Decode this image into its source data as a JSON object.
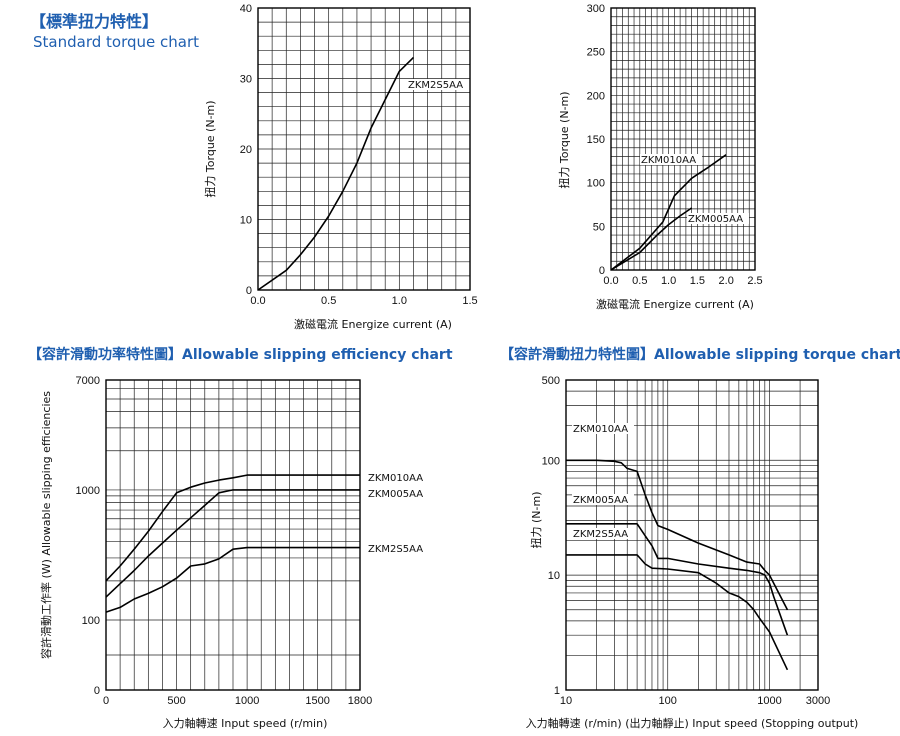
{
  "headings": {
    "standard_torque_zh": "【標準扭力特性】",
    "standard_torque_en": "Standard torque chart",
    "slip_efficiency": "【容許滑動功率特性圖】Allowable slipping efficiency chart",
    "slip_torque": "【容許滑動扭力特性圖】Allowable slipping torque chart"
  },
  "chart_data": [
    {
      "id": "torque-small",
      "type": "line",
      "title": "",
      "xlabel": "激磁電流 Energize current (A)",
      "ylabel": "扭力 Torque (N-m)",
      "xlim": [
        0,
        1.5
      ],
      "ylim": [
        0,
        40
      ],
      "xticks": [
        "0.0",
        "0.5",
        "1.0",
        "1.5"
      ],
      "yticks": [
        "0",
        "10",
        "20",
        "30",
        "40"
      ],
      "grid": true,
      "series": [
        {
          "name": "ZKM2S5AA",
          "x": [
            0,
            0.2,
            0.3,
            0.4,
            0.5,
            0.6,
            0.7,
            0.8,
            0.9,
            1.0,
            1.1
          ],
          "y": [
            0,
            2.8,
            5,
            7.5,
            10.5,
            14,
            18,
            23,
            27,
            31,
            33
          ]
        }
      ]
    },
    {
      "id": "torque-large",
      "type": "line",
      "title": "",
      "xlabel": "激磁電流 Energize current (A)",
      "ylabel": "扭力 Torque (N-m)",
      "xlim": [
        0,
        2.5
      ],
      "ylim": [
        0,
        300
      ],
      "xticks": [
        "0.0",
        "0.5",
        "1.0",
        "1.5",
        "2.0",
        "2.5"
      ],
      "yticks": [
        "0",
        "50",
        "100",
        "150",
        "200",
        "250",
        "300"
      ],
      "grid": true,
      "series": [
        {
          "name": "ZKM010AA",
          "x": [
            0,
            0.5,
            0.9,
            1.1,
            1.4,
            1.7,
            2.0
          ],
          "y": [
            0,
            25,
            55,
            85,
            105,
            118,
            132
          ]
        },
        {
          "name": "ZKM005AA",
          "x": [
            0,
            0.5,
            0.8,
            1.0,
            1.2,
            1.4
          ],
          "y": [
            0,
            20,
            40,
            52,
            62,
            71
          ]
        }
      ]
    },
    {
      "id": "slip-efficiency",
      "type": "line",
      "title": "",
      "xlabel": "入力軸轉速 Input speed (r/min)",
      "ylabel": "容許滑動工作率 (W) Allowable slipping efficiencies",
      "xlim": [
        0,
        1800
      ],
      "ylim": [
        0,
        7000
      ],
      "y_scale": "log",
      "xticks": [
        "0",
        "500",
        "1000",
        "1500",
        "1800"
      ],
      "yticks": [
        "0",
        "100",
        "1000",
        "7000"
      ],
      "grid": true,
      "series": [
        {
          "name": "ZKM010AA",
          "x": [
            0,
            100,
            200,
            300,
            400,
            500,
            600,
            700,
            800,
            900,
            1000,
            1800
          ],
          "y": [
            200,
            260,
            350,
            480,
            680,
            950,
            1050,
            1130,
            1190,
            1240,
            1300,
            1300
          ]
        },
        {
          "name": "ZKM005AA",
          "x": [
            0,
            100,
            200,
            300,
            400,
            500,
            600,
            700,
            800,
            900,
            1000,
            1800
          ],
          "y": [
            150,
            190,
            240,
            310,
            390,
            490,
            610,
            760,
            950,
            1000,
            1000,
            1000
          ]
        },
        {
          "name": "ZKM2S5AA",
          "x": [
            0,
            100,
            200,
            300,
            400,
            500,
            600,
            700,
            800,
            900,
            1000,
            1800
          ],
          "y": [
            115,
            125,
            145,
            160,
            180,
            210,
            260,
            270,
            295,
            350,
            360,
            360
          ]
        }
      ]
    },
    {
      "id": "slip-torque",
      "type": "line",
      "title": "",
      "xlabel": "入力軸轉速 (r/min) (出力軸靜止) Input speed (Stopping output)",
      "ylabel": "扭力 (N-m)",
      "x_scale": "log",
      "y_scale": "log",
      "xlim": [
        10,
        3000
      ],
      "ylim": [
        1,
        500
      ],
      "xticks": [
        "10",
        "100",
        "1000",
        "3000"
      ],
      "yticks": [
        "1",
        "10",
        "100",
        "500"
      ],
      "grid": true,
      "series": [
        {
          "name": "ZKM010AA",
          "x": [
            10,
            20,
            30,
            35,
            40,
            50,
            60,
            70,
            80,
            100,
            200,
            400,
            600,
            800,
            900,
            1000,
            1500
          ],
          "y": [
            100,
            100,
            98,
            95,
            85,
            80,
            50,
            35,
            27,
            25,
            19,
            15,
            13,
            12.5,
            11,
            10,
            5
          ]
        },
        {
          "name": "ZKM005AA",
          "x": [
            10,
            50,
            60,
            70,
            80,
            100,
            200,
            400,
            600,
            800,
            900,
            1000,
            1100,
            1500
          ],
          "y": [
            28,
            28,
            22,
            18,
            14,
            14,
            12.5,
            11.5,
            11,
            10.5,
            10,
            8.5,
            6.5,
            3
          ]
        },
        {
          "name": "ZKM2S5AA",
          "x": [
            10,
            50,
            60,
            70,
            100,
            200,
            300,
            400,
            500,
            600,
            700,
            800,
            1000,
            1500
          ],
          "y": [
            15,
            15,
            12.5,
            11.5,
            11.3,
            10.5,
            8.5,
            7,
            6.5,
            5.8,
            5,
            4.2,
            3.2,
            1.5
          ]
        }
      ]
    }
  ]
}
